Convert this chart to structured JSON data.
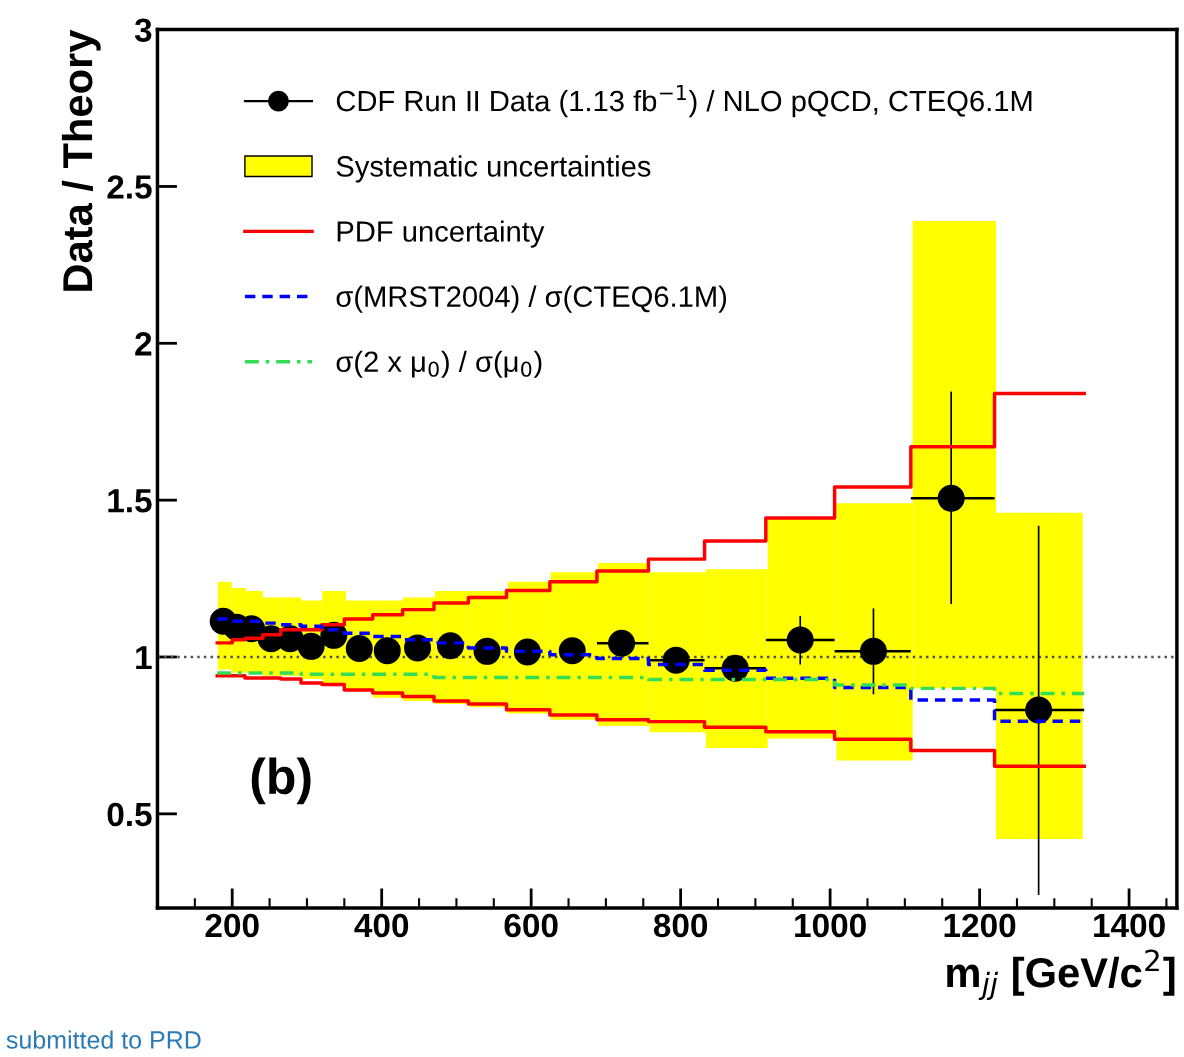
{
  "chart_data": {
    "type": "step",
    "xlabel": "m$_{jj}$ [GeV/c$^{2}$]",
    "ylabel": "Data / Theory",
    "annotations": [
      "(b)",
      "submitted to PRD"
    ],
    "series": [
      {
        "type": "bar",
        "name": "Systematic uncertainties",
        "color": "#ffff00",
        "x": [
          190,
          208.5,
          229,
          253,
          278.5,
          306,
          335,
          369,
          408,
          449,
          493,
          541.5,
          596,
          656.5,
          722.5,
          794.5,
          873,
          960,
          1057,
          1164,
          1280
        ],
        "base": [
          0.96,
          0.95,
          0.95,
          0.94,
          0.94,
          0.93,
          0.91,
          0.89,
          0.87,
          0.86,
          0.85,
          0.84,
          0.82,
          0.8,
          0.78,
          0.76,
          0.71,
          0.74,
          0.67,
          0.9,
          0.42
        ],
        "values": [
          0.28,
          0.27,
          0.26,
          0.25,
          0.25,
          0.25,
          0.3,
          0.29,
          0.31,
          0.33,
          0.36,
          0.37,
          0.42,
          0.47,
          0.52,
          0.51,
          0.57,
          0.7,
          0.82,
          1.49,
          1.04
        ]
      },
      {
        "type": "step",
        "name": "PDF uncertainty",
        "color": "#ff0000",
        "line_style": "solid",
        "x": [
          180,
          200,
          217,
          241,
          265,
          292,
          320,
          350,
          388,
          428,
          470,
          516,
          567,
          625,
          688,
          757,
          832,
          914,
          1006,
          1108,
          1220,
          1340
        ],
        "values": [
          1.045,
          1.055,
          1.06,
          1.071,
          1.087,
          1.087,
          1.103,
          1.121,
          1.135,
          1.151,
          1.172,
          1.19,
          1.212,
          1.24,
          1.274,
          1.312,
          1.37,
          1.443,
          1.542,
          1.67,
          1.84,
          1.84
        ]
      },
      {
        "type": "step",
        "color": "#ff0000",
        "line_style": "solid",
        "x": [
          180,
          200,
          217,
          241,
          265,
          292,
          320,
          350,
          388,
          428,
          470,
          516,
          567,
          625,
          688,
          757,
          832,
          914,
          1006,
          1108,
          1220,
          1340
        ],
        "values": [
          0.94,
          0.94,
          0.933,
          0.933,
          0.93,
          0.917,
          0.912,
          0.895,
          0.885,
          0.874,
          0.86,
          0.85,
          0.832,
          0.815,
          0.8,
          0.794,
          0.776,
          0.762,
          0.738,
          0.702,
          0.652,
          0.652
        ]
      },
      {
        "type": "step",
        "name": "σ(MRST2004) / σ(CTEQ6.1M)",
        "color": "#0000ff",
        "line_style": "dashed",
        "x": [
          180,
          200,
          217,
          241,
          265,
          292,
          320,
          350,
          388,
          428,
          470,
          516,
          567,
          625,
          688,
          757,
          832,
          914,
          1006,
          1108,
          1220,
          1340
        ],
        "values": [
          1.121,
          1.114,
          1.114,
          1.108,
          1.103,
          1.098,
          1.087,
          1.076,
          1.065,
          1.055,
          1.045,
          1.029,
          1.018,
          1.007,
          0.995,
          0.976,
          0.958,
          0.932,
          0.903,
          0.863,
          0.795,
          0.795
        ]
      },
      {
        "type": "step",
        "name": "σ(2 x μ$_{0}$) / σ(μ$_{0}$)",
        "color": "#33dd55",
        "line_style": "dashdot",
        "x": [
          180,
          200,
          217,
          241,
          265,
          292,
          320,
          350,
          388,
          428,
          470,
          516,
          567,
          625,
          688,
          757,
          832,
          914,
          1006,
          1108,
          1220,
          1340
        ],
        "values": [
          0.949,
          0.949,
          0.949,
          0.949,
          0.949,
          0.945,
          0.945,
          0.945,
          0.945,
          0.945,
          0.935,
          0.935,
          0.935,
          0.935,
          0.935,
          0.928,
          0.928,
          0.928,
          0.911,
          0.9,
          0.884,
          0.884
        ]
      },
      {
        "type": "scatter",
        "name": "CDF Run II Data (1.13 fb$^{−1}$) / NLO pQCD, CTEQ6.1M",
        "color": "#000000",
        "marker": "circle",
        "x": [
          188,
          206,
          226,
          252,
          277.5,
          305.6,
          336,
          370,
          407.5,
          448,
          492,
          541,
          595,
          655,
          721,
          794,
          873,
          960,
          1058,
          1162,
          1279
        ],
        "values": [
          1.114,
          1.095,
          1.09,
          1.058,
          1.058,
          1.034,
          1.069,
          1.027,
          1.02,
          1.029,
          1.036,
          1.018,
          1.016,
          1.02,
          1.044,
          0.99,
          0.964,
          1.054,
          1.018,
          1.506,
          0.831
        ],
        "errors": [
          null,
          null,
          null,
          null,
          null,
          null,
          null,
          null,
          null,
          null,
          null,
          null,
          null,
          null,
          null,
          null,
          null,
          [
            0.976,
            1.131
          ],
          [
            0.881,
            1.155
          ],
          [
            1.169,
            1.846
          ],
          [
            0.241,
            1.418
          ]
        ],
        "xerrors": [
          null,
          null,
          null,
          null,
          null,
          null,
          null,
          null,
          null,
          null,
          null,
          null,
          null,
          null,
          [
            688,
            757
          ],
          [
            757,
            832
          ],
          [
            832,
            914
          ],
          [
            914,
            1006
          ],
          [
            1006,
            1108
          ],
          [
            1108,
            1220
          ],
          [
            1220,
            1340
          ]
        ]
      }
    ],
    "ref_lines": [
      {
        "axis": "y",
        "value": 1,
        "color": "#555555",
        "line_style": "dotted"
      }
    ],
    "xlim": [
      100,
      1464
    ],
    "ylim": [
      0.2,
      3
    ],
    "xticks": [
      200,
      400,
      600,
      800,
      1000,
      1200,
      1400
    ],
    "yticks": [
      0.5,
      1,
      1.5,
      2,
      2.5,
      3
    ],
    "grid": false,
    "legend": "top left"
  }
}
